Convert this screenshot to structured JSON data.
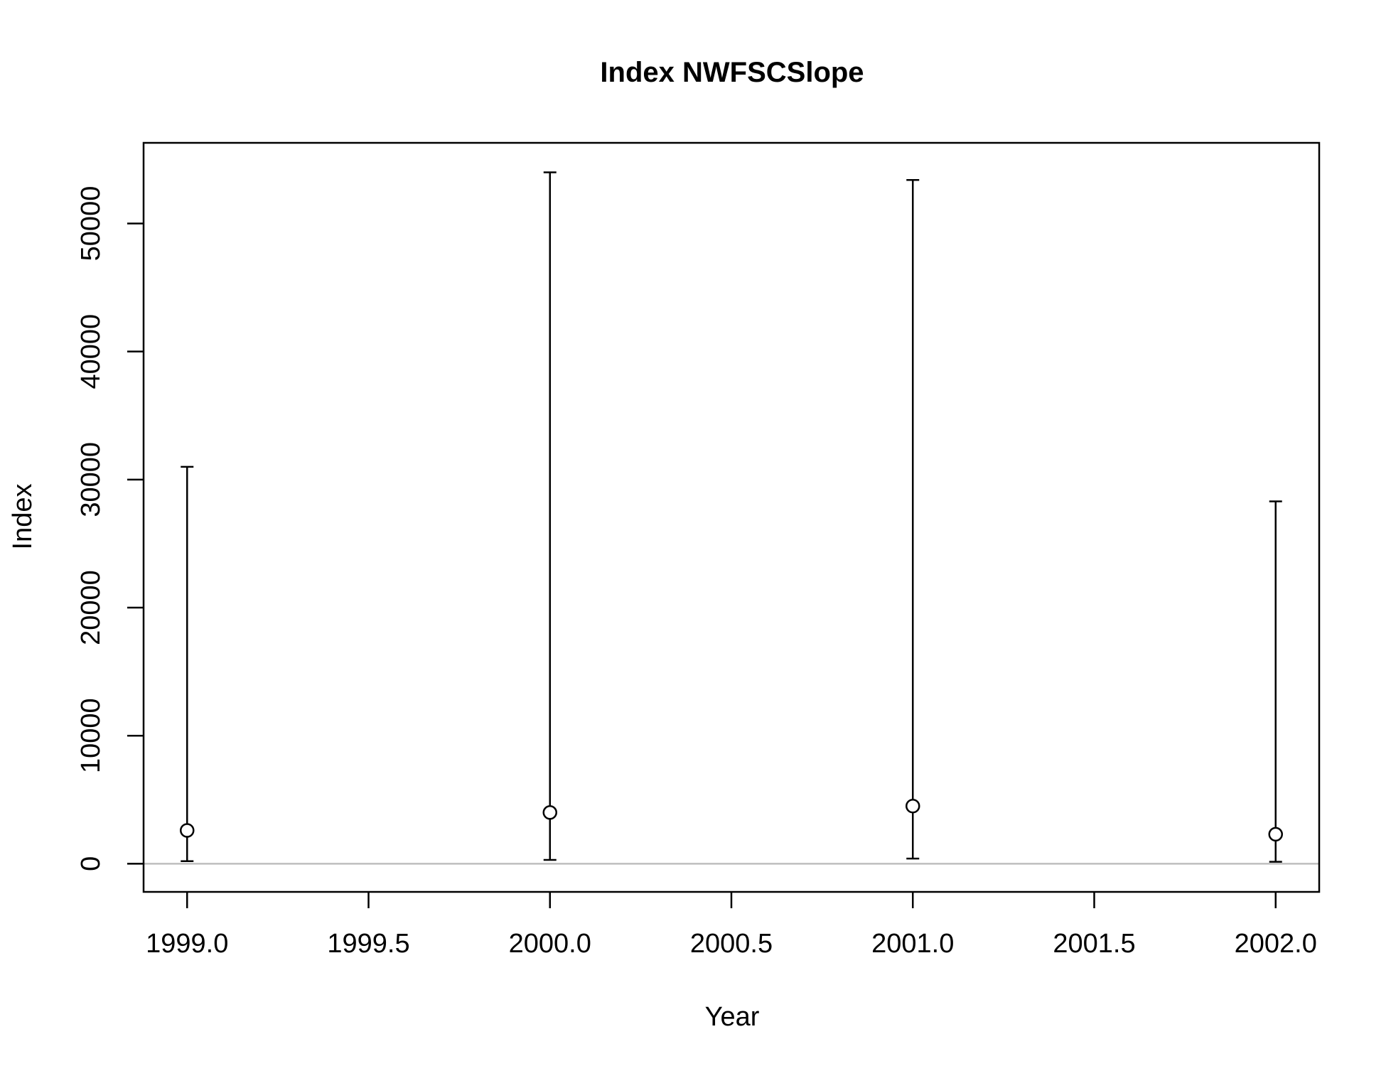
{
  "chart_data": {
    "type": "scatter",
    "title": "Index NWFSCSlope",
    "xlabel": "Year",
    "ylabel": "Index",
    "xlim": [
      1998.88,
      2002.12
    ],
    "ylim": [
      -2200,
      56300
    ],
    "x_ticks": [
      1999.0,
      1999.5,
      2000.0,
      2000.5,
      2001.0,
      2001.5,
      2002.0
    ],
    "x_tick_labels": [
      "1999.0",
      "1999.5",
      "2000.0",
      "2000.5",
      "2001.0",
      "2001.5",
      "2002.0"
    ],
    "y_ticks": [
      0,
      10000,
      20000,
      30000,
      40000,
      50000
    ],
    "y_tick_labels": [
      "0",
      "10000",
      "20000",
      "30000",
      "40000",
      "50000"
    ],
    "reference_line_y": 0,
    "grid": false,
    "series": [
      {
        "points": [
          {
            "x": 1999.0,
            "y": 2600,
            "lower": 200,
            "upper": 31000
          },
          {
            "x": 2000.0,
            "y": 4000,
            "lower": 300,
            "upper": 54000
          },
          {
            "x": 2001.0,
            "y": 4500,
            "lower": 400,
            "upper": 53400
          },
          {
            "x": 2002.0,
            "y": 2300,
            "lower": 150,
            "upper": 28300
          }
        ]
      }
    ]
  }
}
